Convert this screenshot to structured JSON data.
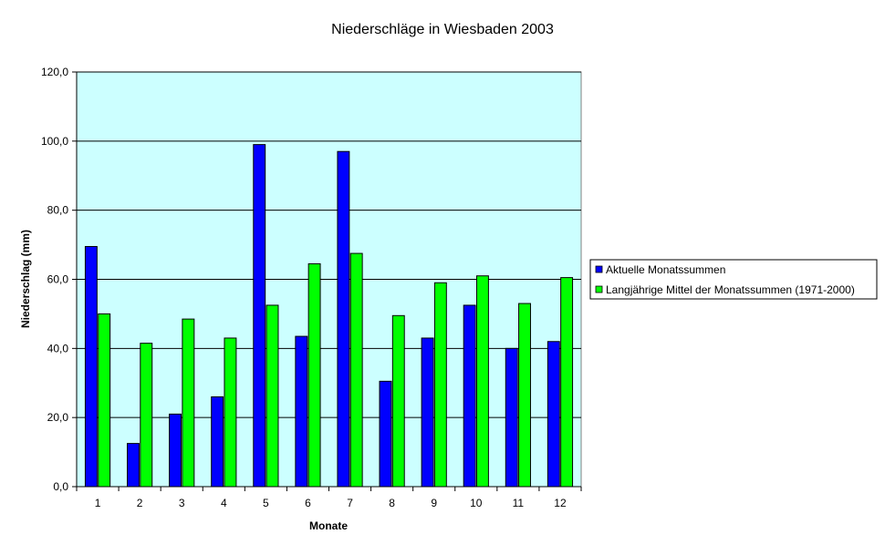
{
  "chart_data": {
    "type": "bar",
    "title": "Niederschläge in Wiesbaden 2003",
    "xlabel": "Monate",
    "ylabel": "Niederschlag (mm)",
    "categories": [
      "1",
      "2",
      "3",
      "4",
      "5",
      "6",
      "7",
      "8",
      "9",
      "10",
      "11",
      "12"
    ],
    "ylim": [
      0,
      120
    ],
    "yticks": [
      0,
      20,
      40,
      60,
      80,
      100,
      120
    ],
    "ytick_labels": [
      "0,0",
      "20,0",
      "40,0",
      "60,0",
      "80,0",
      "100,0",
      "120,0"
    ],
    "grid": true,
    "legend_position": "right",
    "plot_background": "#ccffff",
    "series": [
      {
        "name": "Aktuelle Monatssummen",
        "color": "#0000ff",
        "values": [
          69.5,
          12.5,
          21.0,
          26.0,
          99.0,
          43.5,
          97.0,
          30.5,
          43.0,
          52.5,
          40.0,
          42.0
        ]
      },
      {
        "name": "Langjährige Mittel der Monatssummen (1971-2000)",
        "color": "#00ff00",
        "values": [
          50.0,
          41.5,
          48.5,
          43.0,
          52.5,
          64.5,
          67.5,
          49.5,
          59.0,
          61.0,
          53.0,
          60.5
        ]
      }
    ]
  }
}
